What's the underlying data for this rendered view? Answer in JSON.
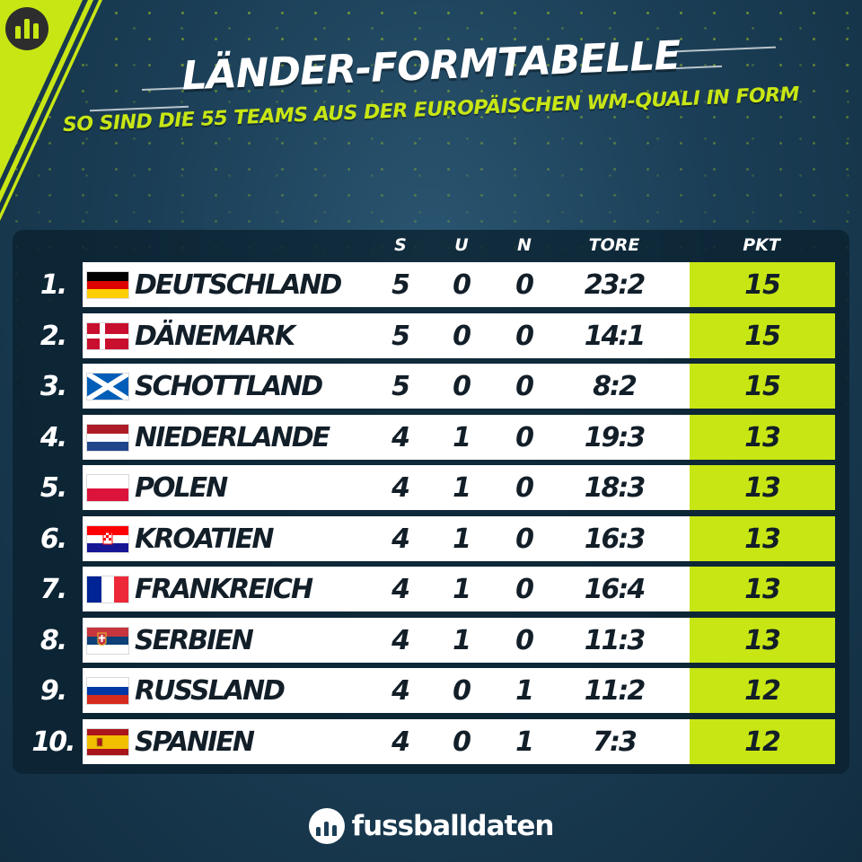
{
  "header": {
    "title": "LÄNDER-FORMTABELLE",
    "subtitle": "SO SIND DIE 55 TEAMS AUS DER EUROPÄISCHEN WM-QUALI IN FORM"
  },
  "columns": {
    "wins": "S",
    "draws": "U",
    "losses": "N",
    "goals": "TORE",
    "points": "PKT"
  },
  "rows": [
    {
      "rank": "1.",
      "flag": "flag-germany",
      "team": "DEUTSCHLAND",
      "wins": "5",
      "draws": "0",
      "losses": "0",
      "goals": "23:2",
      "points": "15"
    },
    {
      "rank": "2.",
      "flag": "flag-denmark",
      "team": "DÄNEMARK",
      "wins": "5",
      "draws": "0",
      "losses": "0",
      "goals": "14:1",
      "points": "15"
    },
    {
      "rank": "3.",
      "flag": "flag-scotland",
      "team": "SCHOTTLAND",
      "wins": "5",
      "draws": "0",
      "losses": "0",
      "goals": "8:2",
      "points": "15"
    },
    {
      "rank": "4.",
      "flag": "flag-netherlands",
      "team": "NIEDERLANDE",
      "wins": "4",
      "draws": "1",
      "losses": "0",
      "goals": "19:3",
      "points": "13"
    },
    {
      "rank": "5.",
      "flag": "flag-poland",
      "team": "POLEN",
      "wins": "4",
      "draws": "1",
      "losses": "0",
      "goals": "18:3",
      "points": "13"
    },
    {
      "rank": "6.",
      "flag": "flag-croatia",
      "team": "KROATIEN",
      "wins": "4",
      "draws": "1",
      "losses": "0",
      "goals": "16:3",
      "points": "13"
    },
    {
      "rank": "7.",
      "flag": "flag-france",
      "team": "FRANKREICH",
      "wins": "4",
      "draws": "1",
      "losses": "0",
      "goals": "16:4",
      "points": "13"
    },
    {
      "rank": "8.",
      "flag": "flag-serbia",
      "team": "SERBIEN",
      "wins": "4",
      "draws": "1",
      "losses": "0",
      "goals": "11:3",
      "points": "13"
    },
    {
      "rank": "9.",
      "flag": "flag-russia",
      "team": "RUSSLAND",
      "wins": "4",
      "draws": "0",
      "losses": "1",
      "goals": "11:2",
      "points": "12"
    },
    {
      "rank": "10.",
      "flag": "flag-spain",
      "team": "SPANIEN",
      "wins": "4",
      "draws": "0",
      "losses": "1",
      "goals": "7:3",
      "points": "12"
    }
  ],
  "brand": {
    "name": "fussballdaten",
    "logo_icon": "bar-chart-icon"
  },
  "colors": {
    "accent": "#c8e614",
    "background": "#1b3f57",
    "row": "#ffffff",
    "text_dark": "#121e28"
  }
}
